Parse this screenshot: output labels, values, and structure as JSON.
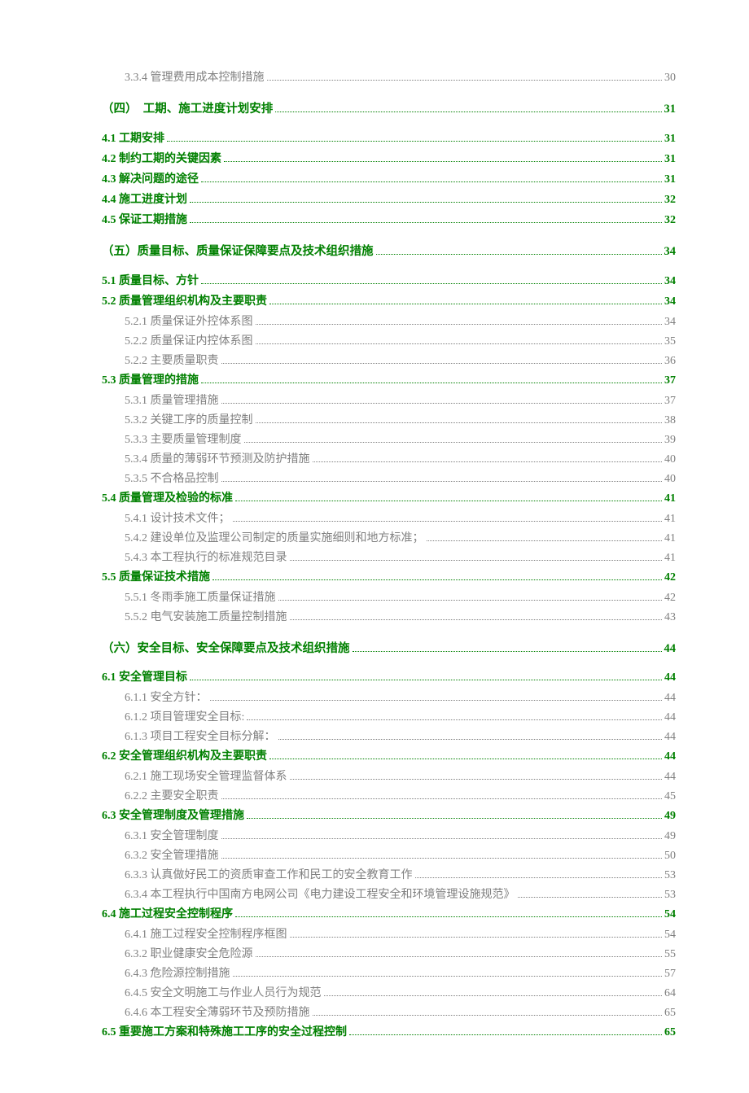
{
  "colors": {
    "heading": "#008000",
    "sub": "#808080",
    "background": "#ffffff"
  },
  "typography": {
    "base_fontsize": 14,
    "heading_fontsize": 14.5,
    "line_height": 1.5,
    "font_family": "SimSun"
  },
  "entries": [
    {
      "level": 3,
      "label": "3.3.4 管理费用成本控制措施",
      "page": "30"
    },
    {
      "level": 1,
      "label": "（四）　工期、施工进度计划安排",
      "page": "31"
    },
    {
      "level": 2,
      "label": "4.1 工期安排",
      "page": "31"
    },
    {
      "level": 2,
      "label": "4.2 制约工期的关键因素",
      "page": "31"
    },
    {
      "level": 2,
      "label": "4.3 解决问题的途径",
      "page": "31"
    },
    {
      "level": 2,
      "label": "4.4 施工进度计划",
      "page": "32"
    },
    {
      "level": 2,
      "label": "4.5 保证工期措施",
      "page": "32"
    },
    {
      "level": 1,
      "label": "（五）质量目标、质量保证保障要点及技术组织措施",
      "page": "34"
    },
    {
      "level": 2,
      "label": "5.1 质量目标、方针",
      "page": "34"
    },
    {
      "level": 2,
      "label": "5.2 质量管理组织机构及主要职责",
      "page": "34"
    },
    {
      "level": 3,
      "label": "5.2.1 质量保证外控体系图",
      "page": "34"
    },
    {
      "level": 3,
      "label": "5.2.2 质量保证内控体系图",
      "page": "35"
    },
    {
      "level": 3,
      "label": "5.2.2 主要质量职责",
      "page": "36"
    },
    {
      "level": 2,
      "label": "5.3 质量管理的措施",
      "page": "37"
    },
    {
      "level": 3,
      "label": "5.3.1 质量管理措施",
      "page": "37"
    },
    {
      "level": 3,
      "label": "5.3.2 关键工序的质量控制",
      "page": "38"
    },
    {
      "level": 3,
      "label": "5.3.3 主要质量管理制度",
      "page": "39"
    },
    {
      "level": 3,
      "label": "5.3.4 质量的薄弱环节预测及防护措施",
      "page": "40"
    },
    {
      "level": 3,
      "label": "5.3.5 不合格品控制",
      "page": "40"
    },
    {
      "level": 2,
      "label": "5.4 质量管理及检验的标准",
      "page": "41"
    },
    {
      "level": 3,
      "label": "5.4.1 设计技术文件；",
      "page": "41"
    },
    {
      "level": 3,
      "label": "5.4.2 建设单位及监理公司制定的质量实施细则和地方标准；",
      "page": "41"
    },
    {
      "level": 3,
      "label": "5.4.3 本工程执行的标准规范目录",
      "page": "41"
    },
    {
      "level": 2,
      "label": "5.5 质量保证技术措施",
      "page": "42"
    },
    {
      "level": 3,
      "label": "5.5.1 冬雨季施工质量保证措施",
      "page": "42"
    },
    {
      "level": 3,
      "label": "5.5.2 电气安装施工质量控制措施",
      "page": "43"
    },
    {
      "level": 1,
      "label": "（六）安全目标、安全保障要点及技术组织措施",
      "page": "44"
    },
    {
      "level": 2,
      "label": "6.1 安全管理目标",
      "page": "44"
    },
    {
      "level": 3,
      "label": "6.1.1 安全方针：",
      "page": "44"
    },
    {
      "level": 3,
      "label": "6.1.2 项目管理安全目标:",
      "page": "44"
    },
    {
      "level": 3,
      "label": "6.1.3 项目工程安全目标分解：",
      "page": "44"
    },
    {
      "level": 2,
      "label": "6.2 安全管理组织机构及主要职责",
      "page": "44"
    },
    {
      "level": 3,
      "label": "6.2.1 施工现场安全管理监督体系",
      "page": "44"
    },
    {
      "level": 3,
      "label": "6.2.2 主要安全职责",
      "page": "45"
    },
    {
      "level": 2,
      "label": "6.3 安全管理制度及管理措施",
      "page": "49"
    },
    {
      "level": 3,
      "label": "6.3.1 安全管理制度",
      "page": "49"
    },
    {
      "level": 3,
      "label": "6.3.2 安全管理措施",
      "page": "50"
    },
    {
      "level": 3,
      "label": "6.3.3 认真做好民工的资质审查工作和民工的安全教育工作",
      "page": "53"
    },
    {
      "level": 3,
      "label": "6.3.4 本工程执行中国南方电网公司《电力建设工程安全和环境管理设施规范》",
      "page": "53"
    },
    {
      "level": 2,
      "label": "6.4  施工过程安全控制程序",
      "page": "54"
    },
    {
      "level": 3,
      "label": "6.4.1 施工过程安全控制程序框图",
      "page": "54"
    },
    {
      "level": 3,
      "label": "6.3.2 职业健康安全危险源",
      "page": "55"
    },
    {
      "level": 3,
      "label": "6.4.3 危险源控制措施",
      "page": "57"
    },
    {
      "level": 3,
      "label": "6.4.5 安全文明施工与作业人员行为规范",
      "page": "64"
    },
    {
      "level": 3,
      "label": "6.4.6 本工程安全薄弱环节及预防措施",
      "page": "65"
    },
    {
      "level": 2,
      "label": "6.5 重要施工方案和特殊施工工序的安全过程控制",
      "page": "65"
    }
  ]
}
